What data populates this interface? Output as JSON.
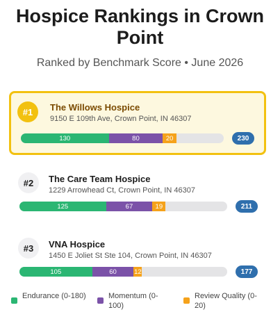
{
  "header": {
    "title": "Hospice Rankings in Crown Point",
    "subtitle": "Ranked by Benchmark Score • June 2026"
  },
  "rows": [
    {
      "rank": "#1",
      "name": "The Willows Hospice",
      "address": "9150 E 109th Ave, Crown Point, IN 46307",
      "highlight": true,
      "segments": [
        130,
        80,
        20
      ],
      "total": 230
    },
    {
      "rank": "#2",
      "name": "The Care Team Hospice",
      "address": "1229 Arrowhead Ct, Crown Point, IN 46307",
      "highlight": false,
      "segments": [
        125,
        67,
        19
      ],
      "total": 211
    },
    {
      "rank": "#3",
      "name": "VNA Hospice",
      "address": "1450 E Joliet St Ste 104, Crown Point, IN 46307",
      "highlight": false,
      "segments": [
        105,
        60,
        12
      ],
      "total": 177
    }
  ],
  "legend": [
    {
      "label": "Endurance (0-180)",
      "max": 180,
      "color": "#2bb673"
    },
    {
      "label": "Momentum (0-100)",
      "max": 100,
      "color": "#7b52a8"
    },
    {
      "label": "Review Quality (0-20)",
      "max": 20,
      "color": "#f5a21b"
    }
  ],
  "total_color": "#2f6fad"
}
